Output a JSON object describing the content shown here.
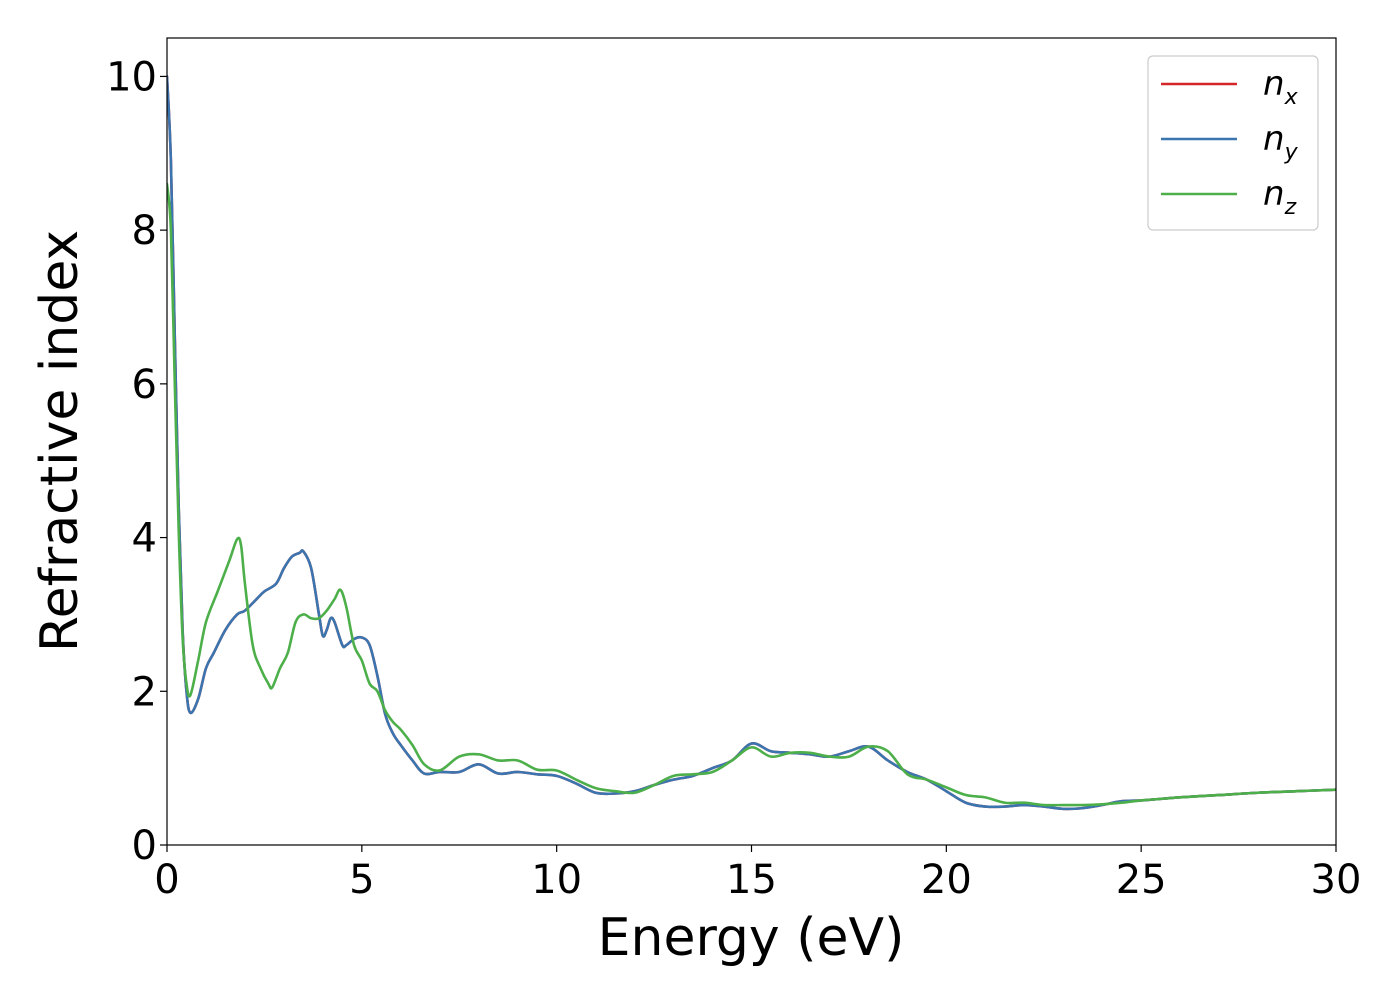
{
  "chart_data": {
    "type": "line",
    "title": "",
    "xlabel": "Energy (eV)",
    "ylabel": "Refractive index",
    "xlim": [
      0,
      30
    ],
    "ylim": [
      0,
      10.5
    ],
    "xticks": [
      "0",
      "5",
      "10",
      "15",
      "20",
      "25",
      "30"
    ],
    "yticks": [
      "0",
      "2",
      "4",
      "6",
      "8",
      "10"
    ],
    "grid": false,
    "legend_position": "top-right",
    "legend": [
      {
        "base": "n",
        "sub": "x",
        "color": "#d62728"
      },
      {
        "base": "n",
        "sub": "y",
        "color": "#3b75af"
      },
      {
        "base": "n",
        "sub": "z",
        "color": "#4daf4a"
      }
    ],
    "series": [
      {
        "name": "n_x",
        "color": "#d62728",
        "x": [
          0.0,
          0.1,
          0.2,
          0.3,
          0.4,
          0.5,
          0.6,
          0.8,
          1.0,
          1.2,
          1.5,
          1.8,
          2.0,
          2.3,
          2.5,
          2.8,
          3.0,
          3.2,
          3.4,
          3.5,
          3.7,
          3.9,
          4.0,
          4.1,
          4.2,
          4.3,
          4.5,
          4.6,
          4.8,
          5.0,
          5.2,
          5.4,
          5.6,
          5.8,
          6.0,
          6.3,
          6.6,
          7.0,
          7.5,
          8.0,
          8.5,
          9.0,
          9.5,
          10.0,
          10.5,
          11.0,
          11.5,
          12.0,
          12.5,
          13.0,
          13.5,
          14.0,
          14.5,
          15.0,
          15.5,
          16.0,
          16.5,
          17.0,
          17.5,
          18.0,
          18.5,
          19.0,
          19.5,
          20.0,
          20.5,
          21.0,
          21.5,
          22.0,
          22.5,
          23.0,
          23.5,
          24.0,
          24.5,
          25.0,
          25.5,
          26.0,
          27.0,
          28.0,
          29.0,
          30.0
        ],
        "y": [
          10.0,
          8.9,
          6.6,
          4.4,
          2.8,
          2.0,
          1.72,
          1.9,
          2.3,
          2.5,
          2.8,
          3.0,
          3.05,
          3.2,
          3.3,
          3.4,
          3.6,
          3.75,
          3.8,
          3.82,
          3.6,
          3.0,
          2.72,
          2.8,
          2.95,
          2.9,
          2.6,
          2.6,
          2.68,
          2.7,
          2.6,
          2.2,
          1.7,
          1.45,
          1.3,
          1.1,
          0.93,
          0.95,
          0.95,
          1.05,
          0.93,
          0.95,
          0.92,
          0.9,
          0.8,
          0.68,
          0.67,
          0.7,
          0.78,
          0.85,
          0.9,
          1.0,
          1.1,
          1.32,
          1.22,
          1.2,
          1.18,
          1.15,
          1.22,
          1.28,
          1.1,
          0.95,
          0.85,
          0.7,
          0.55,
          0.5,
          0.5,
          0.52,
          0.5,
          0.47,
          0.48,
          0.52,
          0.57,
          0.58,
          0.6,
          0.62,
          0.65,
          0.68,
          0.7,
          0.72
        ]
      },
      {
        "name": "n_y",
        "color": "#3b75af",
        "x": [
          0.0,
          0.1,
          0.2,
          0.3,
          0.4,
          0.5,
          0.6,
          0.8,
          1.0,
          1.2,
          1.5,
          1.8,
          2.0,
          2.3,
          2.5,
          2.8,
          3.0,
          3.2,
          3.4,
          3.5,
          3.7,
          3.9,
          4.0,
          4.1,
          4.2,
          4.3,
          4.5,
          4.6,
          4.8,
          5.0,
          5.2,
          5.4,
          5.6,
          5.8,
          6.0,
          6.3,
          6.6,
          7.0,
          7.5,
          8.0,
          8.5,
          9.0,
          9.5,
          10.0,
          10.5,
          11.0,
          11.5,
          12.0,
          12.5,
          13.0,
          13.5,
          14.0,
          14.5,
          15.0,
          15.5,
          16.0,
          16.5,
          17.0,
          17.5,
          18.0,
          18.5,
          19.0,
          19.5,
          20.0,
          20.5,
          21.0,
          21.5,
          22.0,
          22.5,
          23.0,
          23.5,
          24.0,
          24.5,
          25.0,
          25.5,
          26.0,
          27.0,
          28.0,
          29.0,
          30.0
        ],
        "y": [
          10.0,
          8.9,
          6.6,
          4.4,
          2.8,
          2.0,
          1.72,
          1.9,
          2.3,
          2.5,
          2.8,
          3.0,
          3.05,
          3.2,
          3.3,
          3.4,
          3.6,
          3.75,
          3.8,
          3.82,
          3.6,
          3.0,
          2.72,
          2.8,
          2.95,
          2.9,
          2.6,
          2.6,
          2.68,
          2.7,
          2.6,
          2.2,
          1.7,
          1.45,
          1.3,
          1.1,
          0.93,
          0.95,
          0.95,
          1.05,
          0.93,
          0.95,
          0.92,
          0.9,
          0.8,
          0.68,
          0.67,
          0.7,
          0.78,
          0.85,
          0.9,
          1.0,
          1.1,
          1.32,
          1.22,
          1.2,
          1.18,
          1.15,
          1.22,
          1.28,
          1.1,
          0.95,
          0.85,
          0.7,
          0.55,
          0.5,
          0.5,
          0.52,
          0.5,
          0.47,
          0.48,
          0.52,
          0.57,
          0.58,
          0.6,
          0.62,
          0.65,
          0.68,
          0.7,
          0.72
        ]
      },
      {
        "name": "n_z",
        "color": "#4daf4a",
        "x": [
          0.0,
          0.1,
          0.2,
          0.3,
          0.4,
          0.5,
          0.6,
          0.8,
          1.0,
          1.3,
          1.6,
          1.8,
          1.9,
          2.0,
          2.2,
          2.4,
          2.6,
          2.7,
          2.9,
          3.1,
          3.3,
          3.5,
          3.7,
          3.9,
          4.1,
          4.3,
          4.45,
          4.6,
          4.8,
          5.0,
          5.2,
          5.4,
          5.6,
          5.8,
          6.0,
          6.3,
          6.6,
          7.0,
          7.5,
          8.0,
          8.5,
          9.0,
          9.5,
          10.0,
          10.5,
          11.0,
          11.5,
          12.0,
          12.5,
          13.0,
          13.5,
          14.0,
          14.5,
          15.0,
          15.5,
          16.0,
          16.5,
          17.0,
          17.5,
          18.0,
          18.5,
          19.0,
          19.5,
          20.0,
          20.5,
          21.0,
          21.5,
          22.0,
          22.5,
          23.0,
          23.5,
          24.0,
          24.5,
          25.0,
          25.5,
          26.0,
          27.0,
          28.0,
          29.0,
          30.0
        ],
        "y": [
          8.6,
          8.0,
          6.0,
          4.1,
          2.7,
          2.1,
          1.95,
          2.4,
          2.9,
          3.3,
          3.7,
          3.98,
          3.9,
          3.4,
          2.6,
          2.3,
          2.1,
          2.05,
          2.3,
          2.5,
          2.9,
          3.0,
          2.95,
          2.95,
          3.05,
          3.2,
          3.32,
          3.1,
          2.6,
          2.4,
          2.1,
          2.0,
          1.75,
          1.6,
          1.5,
          1.3,
          1.05,
          0.97,
          1.15,
          1.18,
          1.1,
          1.1,
          0.98,
          0.97,
          0.85,
          0.74,
          0.7,
          0.68,
          0.78,
          0.9,
          0.92,
          0.95,
          1.1,
          1.27,
          1.15,
          1.2,
          1.2,
          1.15,
          1.15,
          1.28,
          1.22,
          0.92,
          0.85,
          0.75,
          0.65,
          0.62,
          0.55,
          0.55,
          0.52,
          0.52,
          0.52,
          0.53,
          0.55,
          0.58,
          0.6,
          0.62,
          0.65,
          0.68,
          0.7,
          0.72
        ]
      }
    ]
  }
}
